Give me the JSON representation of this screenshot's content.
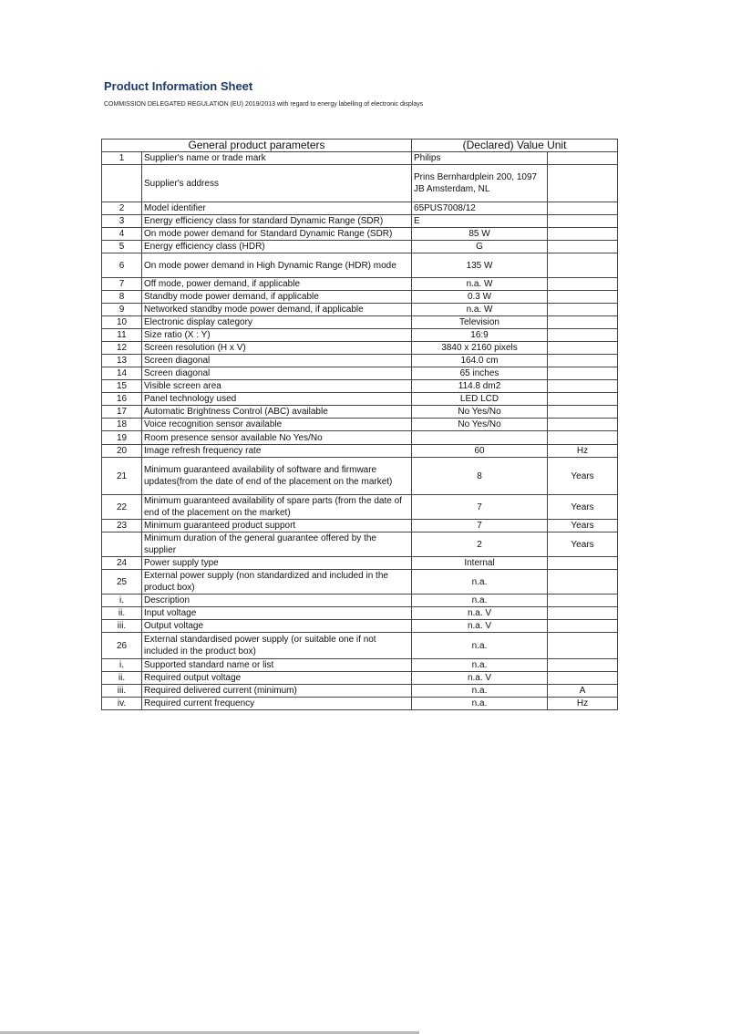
{
  "header": {
    "title": "Product Information Sheet",
    "subtitle": "COMMISSION DELEGATED REGULATION (EU) 2019/2013 with regard to energy labelling of electronic displays"
  },
  "table": {
    "col_param": "General product parameters",
    "col_value": "(Declared) Value Unit",
    "rows": [
      {
        "n": "1",
        "p": "Supplier's name or trade mark",
        "v": "Philips",
        "u": "",
        "align": "l",
        "h": 13
      },
      {
        "n": "",
        "p": "Supplier's address",
        "v": "Prins Bernhardplein 200, 1097 JB Amsterdam, NL",
        "u": "",
        "align": "l",
        "h": 41
      },
      {
        "n": "2",
        "p": "Model identifier",
        "v": "65PUS7008/12",
        "u": "",
        "align": "l",
        "h": 13
      },
      {
        "n": "3",
        "p": "Energy efficiency class for standard Dynamic Range (SDR)",
        "v": "E",
        "u": "",
        "align": "l",
        "h": 11
      },
      {
        "n": "4",
        "p": "On mode power demand for Standard Dynamic Range (SDR)",
        "v": "85 W",
        "u": "",
        "align": "v",
        "h": 13,
        "clip": true
      },
      {
        "n": "5",
        "p": "Energy efficiency class (HDR)",
        "v": "G",
        "u": "",
        "align": "v",
        "h": 13
      },
      {
        "n": "6",
        "p": "On mode power demand in High Dynamic Range (HDR) mode",
        "v": "135 W",
        "u": "",
        "align": "v",
        "h": 27
      },
      {
        "n": "7",
        "p": "Off mode, power demand, if applicable",
        "v": "n.a. W",
        "u": "",
        "align": "v",
        "h": 13
      },
      {
        "n": "8",
        "p": "Standby mode power demand, if applicable",
        "v": "0.3 W",
        "u": "",
        "align": "v",
        "h": 13
      },
      {
        "n": "9",
        "p": "Networked standby mode power demand, if applicable",
        "v": "n.a. W",
        "u": "",
        "align": "v",
        "h": 13
      },
      {
        "n": "10",
        "p": "Electronic display category",
        "v": "Television",
        "u": "",
        "align": "v",
        "h": 13
      },
      {
        "n": "11",
        "p": "Size ratio (X : Y)",
        "v": "16:9",
        "u": "",
        "align": "v",
        "h": 13
      },
      {
        "n": "12",
        "p": "Screen resolution (H x V)",
        "v": "3840 x 2160 pixels",
        "u": "",
        "align": "v",
        "h": 13
      },
      {
        "n": "13",
        "p": "Screen diagonal",
        "v": "164.0 cm",
        "u": "",
        "align": "v",
        "h": 13
      },
      {
        "n": "14",
        "p": "Screen diagonal",
        "v": "65 inches",
        "u": "",
        "align": "v",
        "h": 13
      },
      {
        "n": "15",
        "p": "Visible screen area",
        "v": "114.8 dm2",
        "u": "",
        "align": "v",
        "h": 13
      },
      {
        "n": "16",
        "p": "Panel technology used",
        "v": "LED LCD",
        "u": "",
        "align": "v",
        "h": 13
      },
      {
        "n": "17",
        "p": "Automatic Brightness Control (ABC) available",
        "v": "No Yes/No",
        "u": "",
        "align": "v",
        "h": 13
      },
      {
        "n": "18",
        "p": "Voice recognition sensor available",
        "v": "No Yes/No",
        "u": "",
        "align": "v",
        "h": 13
      },
      {
        "n": "19",
        "p": "Room presence sensor available No Yes/No",
        "v": "",
        "u": "",
        "align": "v",
        "h": 15
      },
      {
        "n": "20",
        "p": "Image refresh frequency rate",
        "v": "60",
        "u": "Hz",
        "align": "v",
        "h": 13
      },
      {
        "n": "21",
        "p": "Minimum guaranteed availability of software and firmware updates(from the date of end of the placement on the market)",
        "v": "8",
        "u": "Years",
        "align": "v",
        "h": 41
      },
      {
        "n": "22",
        "p": "Minimum guaranteed availability of spare parts (from the date of end of the placement on the market)",
        "v": "7",
        "u": "Years",
        "align": "v",
        "h": 27
      },
      {
        "n": "23",
        "p": "Minimum guaranteed product support",
        "v": "7",
        "u": "Years",
        "align": "v",
        "h": 13
      },
      {
        "n": "",
        "p": "Minimum duration of the general guarantee offered by the supplier",
        "v": "2",
        "u": "Years",
        "align": "v",
        "h": 27
      },
      {
        "n": "24",
        "p": "Power supply type",
        "v": "Internal",
        "u": "",
        "align": "v",
        "h": 13
      },
      {
        "n": "25",
        "p": "External power supply (non standardized and included in the product box)",
        "v": "n.a.",
        "u": "",
        "align": "v",
        "h": 27
      },
      {
        "n": "i.",
        "p": "Description",
        "v": "n.a.",
        "u": "",
        "align": "v",
        "h": 13
      },
      {
        "n": "ii.",
        "p": "Input voltage",
        "v": "n.a. V",
        "u": "",
        "align": "v",
        "h": 13
      },
      {
        "n": "iii.",
        "p": "Output voltage",
        "v": "n.a. V",
        "u": "",
        "align": "v",
        "h": 13
      },
      {
        "n": "26",
        "p": "External standardised power supply (or suitable one if not included in the product box)",
        "v": "n.a.",
        "u": "",
        "align": "v",
        "h": 29
      },
      {
        "n": "i.",
        "p": " Supported standard name or list",
        "v": "n.a.",
        "u": "",
        "align": "v",
        "h": 13
      },
      {
        "n": "ii.",
        "p": "Required output voltage",
        "v": "n.a. V",
        "u": "",
        "align": "v",
        "h": 13
      },
      {
        "n": "iii.",
        "p": "Required delivered current (minimum)",
        "v": "n.a.",
        "u": "A",
        "align": "v",
        "h": 13
      },
      {
        "n": "iv.",
        "p": " Required current frequency",
        "v": "n.a.",
        "u": "Hz",
        "align": "v",
        "h": 13
      }
    ]
  }
}
